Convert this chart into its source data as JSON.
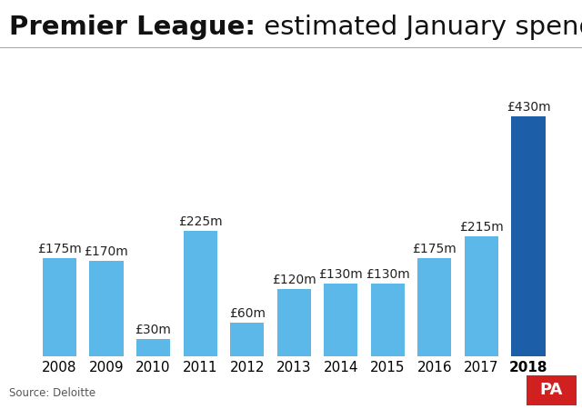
{
  "years": [
    "2008",
    "2009",
    "2010",
    "2011",
    "2012",
    "2013",
    "2014",
    "2015",
    "2016",
    "2017",
    "2018"
  ],
  "values": [
    175,
    170,
    30,
    225,
    60,
    120,
    130,
    130,
    175,
    215,
    430
  ],
  "labels": [
    "£175m",
    "£170m",
    "£30m",
    "£225m",
    "£60m",
    "£120m",
    "£130m",
    "£130m",
    "£175m",
    "£215m",
    "£430m"
  ],
  "bar_color_light": "#5bb8e8",
  "bar_color_highlight": "#1c5fa8",
  "title_bold": "Premier League:",
  "title_regular": " estimated January spending",
  "source": "Source: Deloitte",
  "pa_text": "PA",
  "pa_bg": "#d02020",
  "pa_text_color": "#ffffff",
  "background_color": "#ffffff",
  "title_fontsize": 21,
  "label_fontsize": 10,
  "axis_fontsize": 11,
  "ylim": [
    0,
    500
  ]
}
